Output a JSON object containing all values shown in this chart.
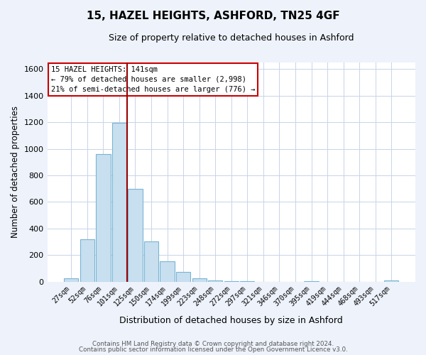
{
  "title": "15, HAZEL HEIGHTS, ASHFORD, TN25 4GF",
  "subtitle": "Size of property relative to detached houses in Ashford",
  "xlabel": "Distribution of detached houses by size in Ashford",
  "ylabel": "Number of detached properties",
  "bar_labels": [
    "27sqm",
    "52sqm",
    "76sqm",
    "101sqm",
    "125sqm",
    "150sqm",
    "174sqm",
    "199sqm",
    "223sqm",
    "248sqm",
    "272sqm",
    "297sqm",
    "321sqm",
    "346sqm",
    "370sqm",
    "395sqm",
    "419sqm",
    "444sqm",
    "468sqm",
    "493sqm",
    "517sqm"
  ],
  "bar_values": [
    25,
    320,
    960,
    1195,
    700,
    305,
    150,
    75,
    25,
    10,
    5,
    2,
    0,
    0,
    0,
    1,
    0,
    0,
    0,
    0,
    10
  ],
  "bar_color": "#c8dff0",
  "bar_edge_color": "#7ab4d4",
  "ylim": [
    0,
    1650
  ],
  "yticks": [
    0,
    200,
    400,
    600,
    800,
    1000,
    1200,
    1400,
    1600
  ],
  "property_line_x": 3.5,
  "property_label": "15 HAZEL HEIGHTS: 141sqm",
  "annotation_line1": "← 79% of detached houses are smaller (2,998)",
  "annotation_line2": "21% of semi-detached houses are larger (776) →",
  "footnote1": "Contains HM Land Registry data © Crown copyright and database right 2024.",
  "footnote2": "Contains public sector information licensed under the Open Government Licence v3.0.",
  "bg_color": "#edf2fb",
  "plot_bg_color": "#ffffff",
  "grid_color": "#c8d4e8",
  "annotation_box_color": "#ffffff",
  "annotation_box_edge": "#cc0000",
  "property_line_color": "#990000"
}
